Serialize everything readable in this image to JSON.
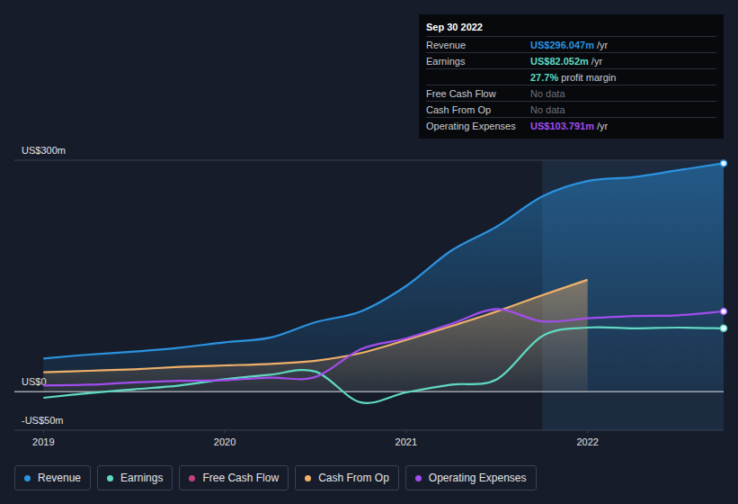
{
  "chart_data": {
    "type": "line",
    "x": [
      2019,
      2019.25,
      2019.5,
      2019.75,
      2020,
      2020.25,
      2020.5,
      2020.75,
      2021,
      2021.25,
      2021.5,
      2021.75,
      2022,
      2022.25,
      2022.5,
      2022.75
    ],
    "xlim": [
      2018.84,
      2022.75
    ],
    "xticks": [
      2019,
      2020,
      2021,
      2022
    ],
    "ylim": [
      -50,
      300
    ],
    "yticks": [
      {
        "value": -50,
        "label": "-US$50m"
      },
      {
        "value": 0,
        "label": "US$0"
      },
      {
        "value": 300,
        "label": "US$300m"
      }
    ],
    "grid": true,
    "legend": "bottom",
    "highlight_x": [
      2021.75,
      2022.75
    ],
    "series": [
      {
        "name": "Revenue",
        "color": "#2b93e0",
        "type": "area",
        "marker": "end",
        "values": [
          43,
          48,
          52,
          57,
          64,
          70,
          90,
          104,
          137,
          183,
          214,
          253,
          273,
          278,
          287,
          296
        ]
      },
      {
        "name": "Earnings",
        "color": "#5fd9c2",
        "type": "line",
        "marker": "end",
        "values": [
          -8,
          -2,
          3,
          8,
          16,
          22,
          26,
          -14,
          -1,
          9,
          16,
          72,
          83,
          82,
          83,
          82
        ]
      },
      {
        "name": "Free Cash Flow",
        "color": "#c4407f",
        "type": "line",
        "values": [
          null,
          null,
          null,
          null,
          null,
          null,
          null,
          null,
          null,
          null,
          null,
          null,
          null,
          null,
          null,
          null
        ]
      },
      {
        "name": "Cash From Op",
        "color": "#f0b06a",
        "type": "area",
        "values": [
          25,
          27,
          29,
          32,
          34,
          36,
          40,
          50,
          67,
          85,
          104,
          125,
          145,
          null,
          null,
          null
        ]
      },
      {
        "name": "Operating Expenses",
        "color": "#a24ded",
        "type": "line",
        "marker": "end",
        "values": [
          8,
          9,
          12,
          14,
          15,
          18,
          19,
          55,
          69,
          88,
          107,
          91,
          95,
          98,
          99,
          104
        ]
      }
    ],
    "tooltip": {
      "title": "Sep 30 2022",
      "rows": [
        {
          "label": "Revenue",
          "value": "US$296.047m",
          "unit": "/yr",
          "color": "#2b93e0"
        },
        {
          "label": "Earnings",
          "value": "US$82.052m",
          "unit": "/yr",
          "color": "#5fd9c2"
        },
        {
          "value": "27.7%",
          "unit": "profit margin",
          "color": "#5fd9c2"
        },
        {
          "label": "Free Cash Flow",
          "value": "No data"
        },
        {
          "label": "Cash From Op",
          "value": "No data"
        },
        {
          "label": "Operating Expenses",
          "value": "US$103.791m",
          "unit": "/yr",
          "color": "#a24ded"
        }
      ]
    }
  }
}
